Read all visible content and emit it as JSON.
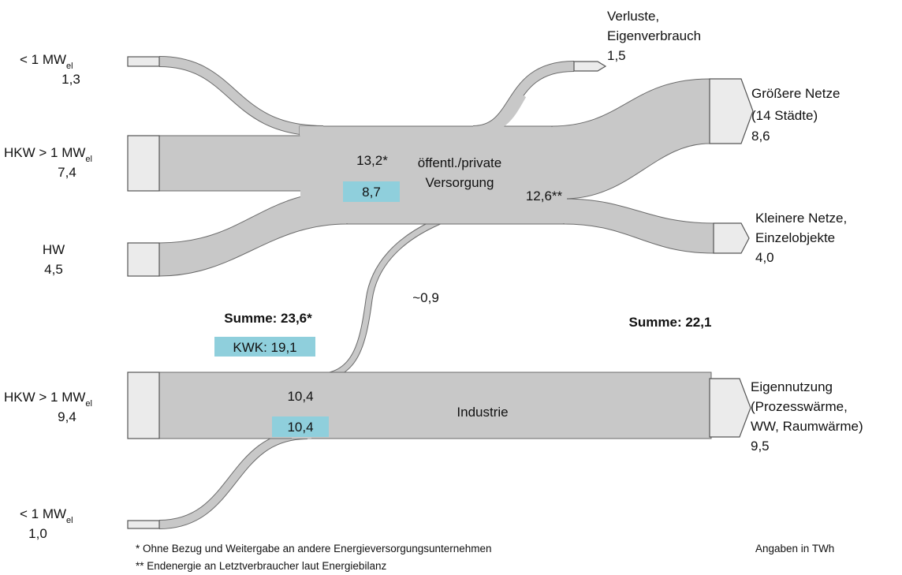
{
  "sources": [
    {
      "label": "< 1 MW",
      "sub": "el",
      "value": "1,3"
    },
    {
      "label": "HKW > 1 MW",
      "sub": "el",
      "value": "7,4"
    },
    {
      "label": "HW",
      "value": "4,5"
    },
    {
      "label": "HKW > 1 MW",
      "sub": "el",
      "value": "9,4"
    },
    {
      "label": "< 1 MW",
      "sub": "el",
      "value": "1,0"
    }
  ],
  "sinks": [
    {
      "lines": [
        "Verluste,",
        "Eigenverbrauch"
      ],
      "value": "1,5"
    },
    {
      "lines": [
        "Größere Netze",
        "(14 Städte)"
      ],
      "value": "8,6"
    },
    {
      "lines": [
        "Kleinere Netze,",
        "Einzelobjekte"
      ],
      "value": "4,0"
    },
    {
      "lines": [
        "Eigennutzung",
        "(Prozesswärme,",
        "WW, Raumwärme)"
      ],
      "value": "9,5"
    }
  ],
  "hubs": {
    "public": {
      "name": [
        "öffentl./private",
        "Versorgung"
      ],
      "total": "13,2*",
      "kwk": "8,7",
      "out": "12,6**"
    },
    "industry": {
      "name": "Industrie",
      "total": "10,4",
      "kwk": "10,4"
    }
  },
  "transfer": "~0,9",
  "sums": {
    "left": "Summe: 23,6*",
    "kwk": "KWK: 19,1",
    "right": "Summe: 22,1"
  },
  "footnotes": [
    "* Ohne Bezug und Weitergabe an andere Energieversorgungsunternehmen",
    "** Endenergie an Letztverbraucher laut Energiebilanz"
  ],
  "unit": "Angaben in TWh"
}
